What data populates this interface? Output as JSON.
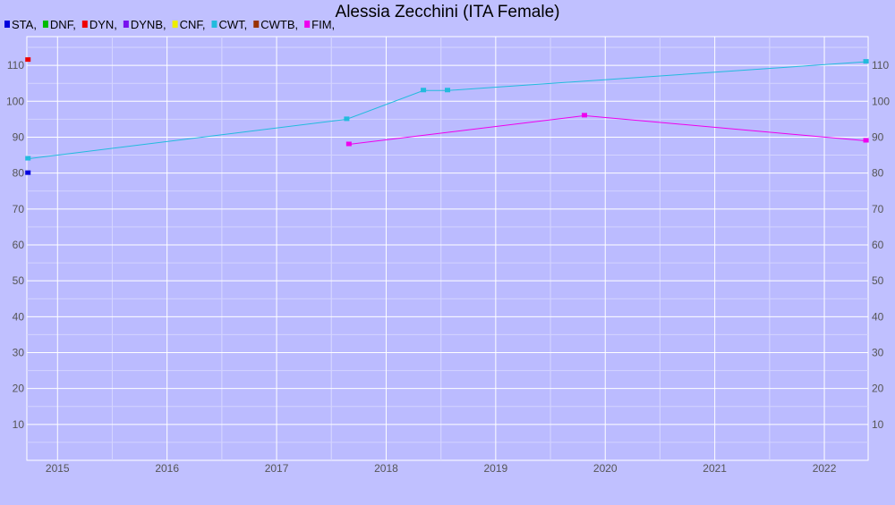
{
  "chart_data": {
    "type": "line",
    "title": "Alessia Zecchini (ITA Female)",
    "xlabel": "",
    "ylabel": "",
    "xlim": [
      2014.72,
      2022.4
    ],
    "ylim": [
      0,
      118
    ],
    "grid": true,
    "legend_placement": "top-left",
    "x_ticks": [
      "2015",
      "2016",
      "2017",
      "2018",
      "2019",
      "2020",
      "2021",
      "2022"
    ],
    "y_ticks": [
      "10",
      "20",
      "30",
      "40",
      "50",
      "60",
      "70",
      "80",
      "90",
      "100",
      "110"
    ],
    "legend": [
      {
        "label": "STA,",
        "color": "#0000dd"
      },
      {
        "label": "DNF,",
        "color": "#00bb00"
      },
      {
        "label": "DYN,",
        "color": "#ee0000"
      },
      {
        "label": "DYNB,",
        "color": "#7711ee"
      },
      {
        "label": "CNF,",
        "color": "#eeee00"
      },
      {
        "label": "CWT,",
        "color": "#22bbdd"
      },
      {
        "label": "CWTB,",
        "color": "#993300"
      },
      {
        "label": "FIM,",
        "color": "#ee00ee"
      }
    ],
    "series": [
      {
        "name": "STA",
        "color": "#0000dd",
        "line": false,
        "points": [
          [
            2014.73,
            80
          ]
        ]
      },
      {
        "name": "DYN",
        "color": "#ee0000",
        "line": false,
        "points": [
          [
            2014.73,
            111.5
          ]
        ]
      },
      {
        "name": "CWT",
        "color": "#22bbdd",
        "line": true,
        "points": [
          [
            2014.73,
            84
          ],
          [
            2017.64,
            95
          ],
          [
            2018.34,
            103
          ],
          [
            2018.56,
            103
          ],
          [
            2022.38,
            111
          ]
        ]
      },
      {
        "name": "FIM",
        "color": "#ee00ee",
        "line": true,
        "points": [
          [
            2017.66,
            88
          ],
          [
            2019.81,
            96
          ],
          [
            2022.38,
            89
          ]
        ]
      }
    ]
  }
}
